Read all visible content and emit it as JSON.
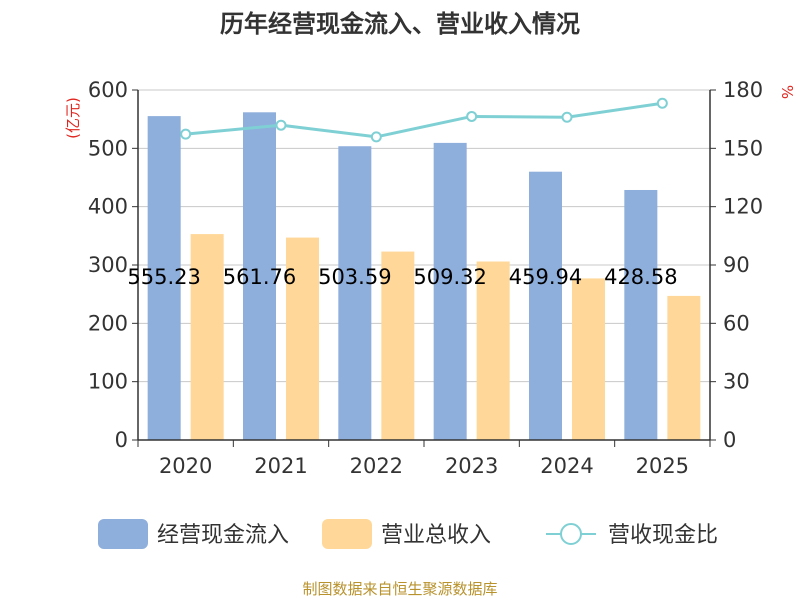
{
  "chart_data": {
    "type": "bar",
    "title": "历年经营现金流入、营业收入情况",
    "categories": [
      "2020",
      "2021",
      "2022",
      "2023",
      "2024",
      "2025"
    ],
    "series": [
      {
        "name": "经营现金流入",
        "type": "bar",
        "axis": "left",
        "color": "#8eaedc",
        "values": [
          555.23,
          561.76,
          503.59,
          509.32,
          459.94,
          428.58
        ],
        "labels": [
          "555.23",
          "561.76",
          "503.59",
          "509.32",
          "459.94",
          "428.58"
        ]
      },
      {
        "name": "营业总收入",
        "type": "bar",
        "axis": "left",
        "color": "#ffd899",
        "values": [
          353,
          347,
          323,
          306,
          277,
          247
        ]
      },
      {
        "name": "营收现金比",
        "type": "line",
        "axis": "right",
        "color": "#7fd0d4",
        "values": [
          157.3,
          161.9,
          155.9,
          166.4,
          166.0,
          173.2
        ]
      }
    ],
    "y_left": {
      "label": "(亿元)",
      "ylim": [
        0,
        600
      ],
      "ticks": [
        "0",
        "100",
        "200",
        "300",
        "400",
        "500",
        "600"
      ]
    },
    "y_right": {
      "label": "%",
      "ylim": [
        0,
        180
      ],
      "ticks": [
        "0",
        "30",
        "60",
        "90",
        "120",
        "150",
        "180"
      ]
    },
    "grid": true,
    "legend_position": "bottom"
  },
  "source_text": "制图数据来自恒生聚源数据库"
}
